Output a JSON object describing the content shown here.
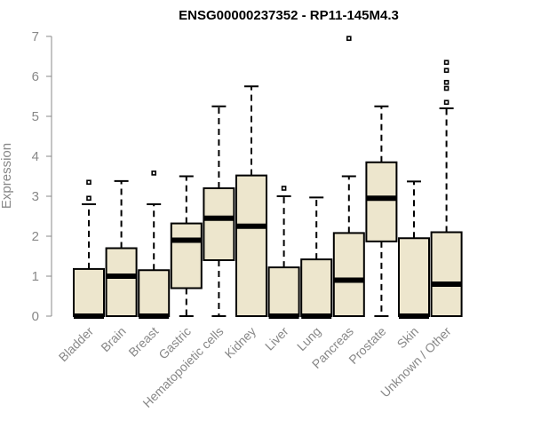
{
  "chart_data": {
    "type": "boxplot",
    "title": "ENSG00000237352 - RP11-145M4.3",
    "ylabel": "Expression",
    "xlabel": "",
    "ylim": [
      0,
      7
    ],
    "yticks": [
      "0",
      "1",
      "2",
      "3",
      "4",
      "5",
      "6",
      "7"
    ],
    "grid": false,
    "colors": {
      "box_fill": "#ede6cd",
      "box_stroke": "#000000",
      "axis": "#888888"
    },
    "categories": [
      "Bladder",
      "Brain",
      "Breast",
      "Gastric",
      "Hematopoietic cells",
      "Kidney",
      "Liver",
      "Lung",
      "Pancreas",
      "Prostate",
      "Skin",
      "Unknown / Other"
    ],
    "boxes": [
      {
        "min": 0,
        "q1": 0,
        "median": 0,
        "q3": 1.18,
        "max": 2.8,
        "outliers": [
          2.95,
          3.35
        ]
      },
      {
        "min": 0,
        "q1": 0,
        "median": 1.0,
        "q3": 1.7,
        "max": 3.38,
        "outliers": []
      },
      {
        "min": 0,
        "q1": 0,
        "median": 0,
        "q3": 1.15,
        "max": 2.8,
        "outliers": [
          3.58
        ]
      },
      {
        "min": 0,
        "q1": 0.7,
        "median": 1.9,
        "q3": 2.32,
        "max": 3.5,
        "outliers": []
      },
      {
        "min": 0,
        "q1": 1.4,
        "median": 2.45,
        "q3": 3.2,
        "max": 5.25,
        "outliers": []
      },
      {
        "min": 0,
        "q1": 0,
        "median": 2.25,
        "q3": 3.52,
        "max": 5.75,
        "outliers": []
      },
      {
        "min": 0,
        "q1": 0,
        "median": 0,
        "q3": 1.22,
        "max": 3.0,
        "outliers": [
          3.2
        ]
      },
      {
        "min": 0,
        "q1": 0,
        "median": 0,
        "q3": 1.42,
        "max": 2.97,
        "outliers": []
      },
      {
        "min": 0,
        "q1": 0,
        "median": 0.9,
        "q3": 2.08,
        "max": 3.5,
        "outliers": [
          6.95
        ]
      },
      {
        "min": 0,
        "q1": 1.87,
        "median": 2.95,
        "q3": 3.85,
        "max": 5.25,
        "outliers": []
      },
      {
        "min": 0,
        "q1": 0,
        "median": 0,
        "q3": 1.95,
        "max": 3.37,
        "outliers": []
      },
      {
        "min": 0,
        "q1": 0,
        "median": 0.8,
        "q3": 2.1,
        "max": 5.2,
        "outliers": [
          5.35,
          5.7,
          5.85,
          6.15,
          6.35
        ]
      }
    ]
  }
}
